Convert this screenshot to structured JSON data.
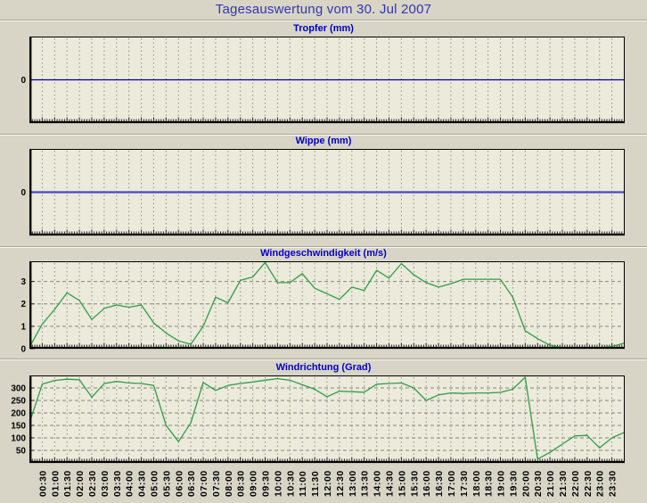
{
  "page_title": "Tagesauswertung vom 30. Jul 2007",
  "colors": {
    "page_background": "#d8d5c7",
    "plot_background": "#eceada",
    "main_title": "#3434b4",
    "panel_title": "#0000cc",
    "grid": "#8f8f85",
    "axis": "#000000",
    "tropfer_line": "#000090",
    "wippe_line": "#4848c8",
    "wind_line": "#2f9e49"
  },
  "x_axis": {
    "labels": [
      "00:30",
      "01:00",
      "01:30",
      "02:00",
      "02:30",
      "03:00",
      "03:30",
      "04:00",
      "04:30",
      "05:00",
      "05:30",
      "06:00",
      "06:30",
      "07:00",
      "07:30",
      "08:00",
      "08:30",
      "09:00",
      "09:30",
      "10:00",
      "10:30",
      "11:00",
      "11:30",
      "12:00",
      "12:30",
      "13:00",
      "13:30",
      "14:00",
      "14:30",
      "15:00",
      "15:30",
      "16:00",
      "16:30",
      "17:00",
      "17:30",
      "18:00",
      "18:30",
      "19:00",
      "19:30",
      "20:00",
      "20:30",
      "21:00",
      "21:30",
      "22:00",
      "22:30",
      "23:00",
      "23:30"
    ],
    "start": "00:00",
    "step_minutes": 30
  },
  "chart_data": [
    {
      "type": "line",
      "title": "Tropfer (mm)",
      "ylim": [
        -1,
        1
      ],
      "yticks": [
        0
      ],
      "grid_y": [],
      "constant": 0,
      "color": "#000090",
      "line_width": 1.2
    },
    {
      "type": "line",
      "title": "Wippe (mm)",
      "ylim": [
        -1,
        1
      ],
      "yticks": [
        0
      ],
      "grid_y": [],
      "constant": 0,
      "color": "#4848c8",
      "line_width": 2.2
    },
    {
      "type": "line",
      "title": "Windgeschwindigkeit (m/s)",
      "ylim": [
        0,
        3.9
      ],
      "yticks": [
        0,
        1,
        2,
        3
      ],
      "grid_y": [
        1,
        2,
        3
      ],
      "color": "#2f9e49",
      "line_width": 1.3,
      "values": [
        0.1,
        1.1,
        1.75,
        2.5,
        2.15,
        1.3,
        1.8,
        1.95,
        1.85,
        1.95,
        1.15,
        0.7,
        0.35,
        0.2,
        1.0,
        2.3,
        2.05,
        3.05,
        3.2,
        3.85,
        2.95,
        2.95,
        3.35,
        2.7,
        2.45,
        2.2,
        2.75,
        2.6,
        3.5,
        3.15,
        3.8,
        3.3,
        2.95,
        2.75,
        2.9,
        3.1,
        3.1,
        3.1,
        3.1,
        2.3,
        0.8,
        0.45,
        0.15,
        0.05,
        0.05,
        0.05,
        0.05,
        0.1,
        0.25
      ]
    },
    {
      "type": "line",
      "title": "Windrichtung (Grad)",
      "ylim": [
        0,
        350
      ],
      "yticks": [
        50,
        100,
        150,
        200,
        250,
        300
      ],
      "grid_y": [
        50,
        100,
        150,
        200,
        250,
        300
      ],
      "color": "#2f9e49",
      "line_width": 1.3,
      "values": [
        165,
        315,
        330,
        335,
        333,
        263,
        318,
        326,
        320,
        318,
        310,
        150,
        85,
        160,
        322,
        290,
        310,
        318,
        324,
        331,
        337,
        331,
        313,
        295,
        265,
        287,
        285,
        283,
        315,
        318,
        320,
        300,
        250,
        272,
        280,
        278,
        280,
        280,
        282,
        295,
        343,
        15,
        42,
        75,
        108,
        110,
        60,
        100,
        122
      ]
    }
  ]
}
